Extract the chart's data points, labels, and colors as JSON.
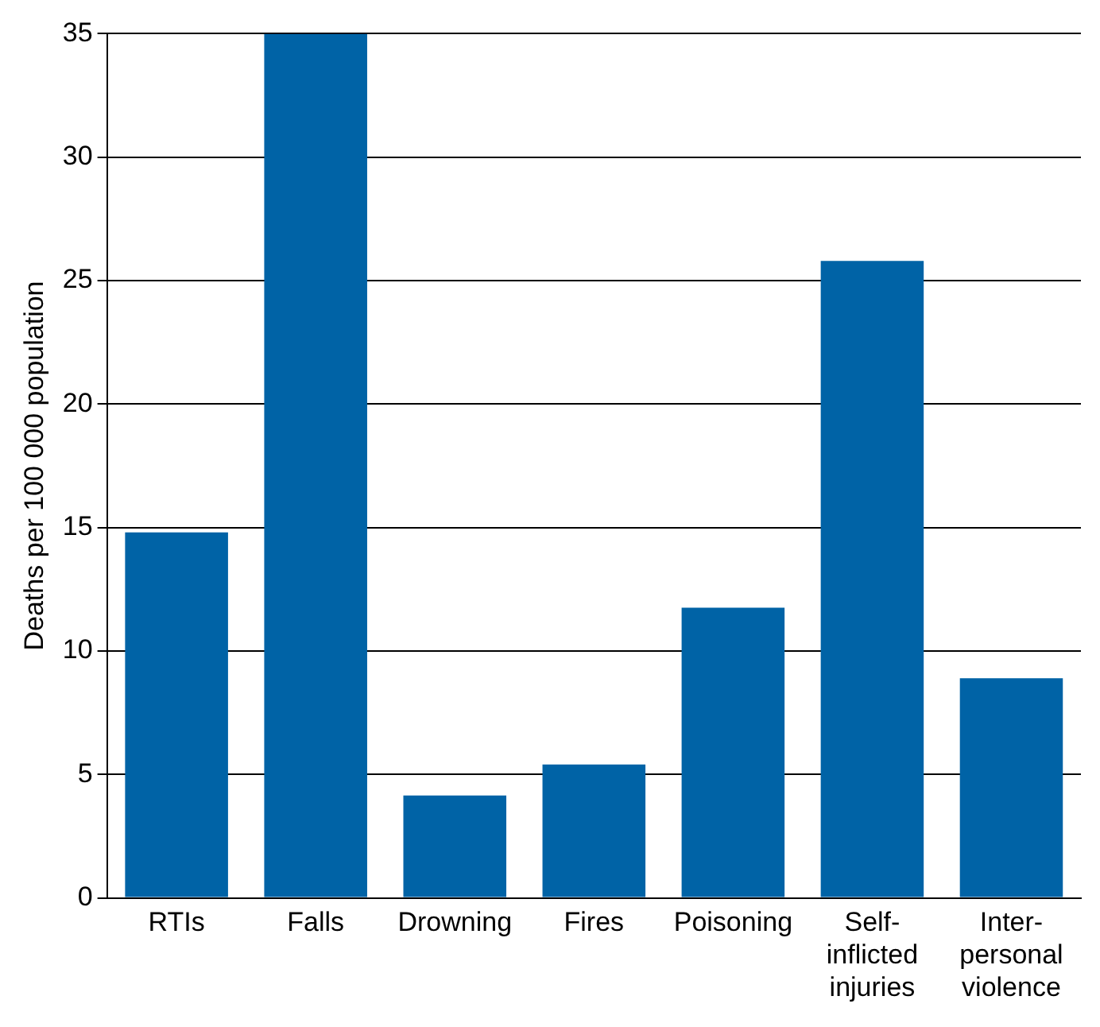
{
  "chart_data": {
    "type": "bar",
    "ylabel": "Deaths per 100 000 population",
    "categories": [
      "RTIs",
      "Falls",
      "Drowning",
      "Fires",
      "Poisoning",
      "Self-inflicted injuries",
      "Inter-personal violence"
    ],
    "values": [
      14.8,
      35,
      4.15,
      5.4,
      11.75,
      25.8,
      8.9
    ],
    "color": "#0063a6",
    "ylim": [
      0,
      35
    ],
    "yticks": [
      0,
      5,
      10,
      15,
      20,
      25,
      30,
      35
    ],
    "grid": "y",
    "legend": false
  }
}
